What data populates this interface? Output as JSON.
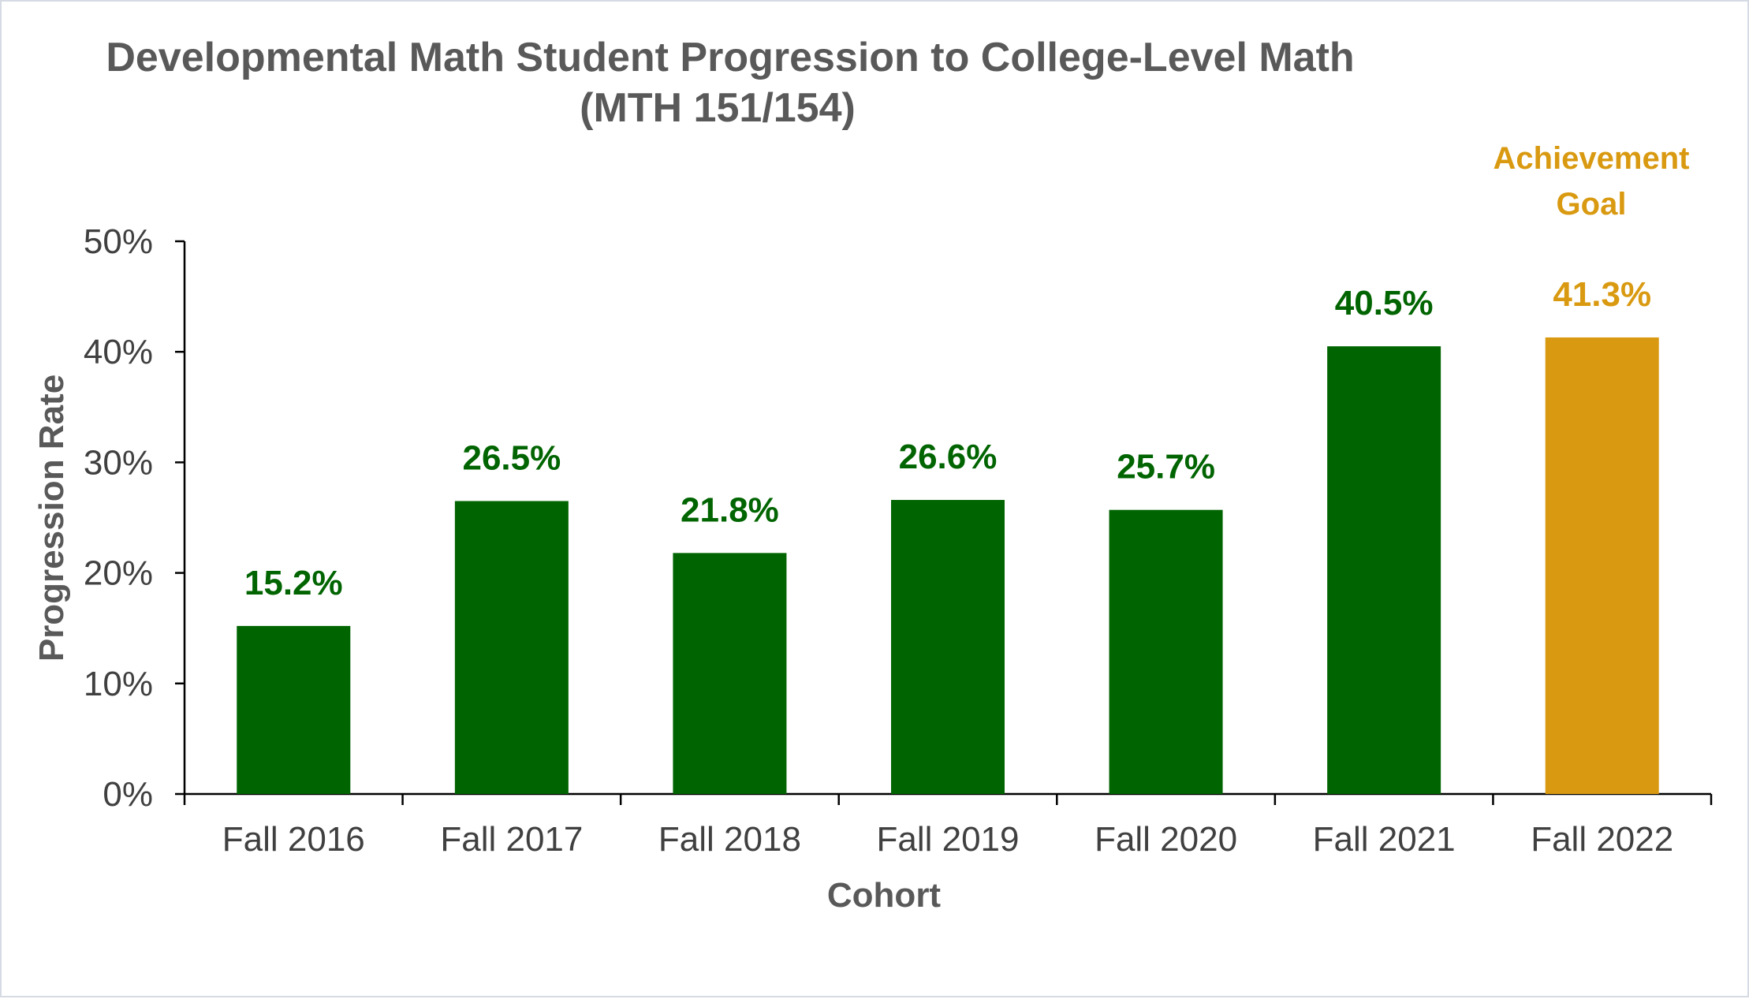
{
  "chart_data": {
    "type": "bar",
    "title_line1": "Developmental Math Student Progression to College-Level Math",
    "title_line2": "(MTH 151/154)",
    "xlabel": "Cohort",
    "ylabel": "Progression Rate",
    "categories": [
      "Fall 2016",
      "Fall 2017",
      "Fall 2018",
      "Fall 2019",
      "Fall 2020",
      "Fall 2021",
      "Fall 2022"
    ],
    "values": [
      15.2,
      26.5,
      21.8,
      26.6,
      25.7,
      40.5,
      41.3
    ],
    "data_labels": [
      "15.2%",
      "26.5%",
      "21.8%",
      "26.6%",
      "25.7%",
      "40.5%",
      "41.3%"
    ],
    "ylim": [
      0,
      50
    ],
    "yticks": [
      0,
      10,
      20,
      30,
      40,
      50
    ],
    "ytick_labels": [
      "0%",
      "10%",
      "20%",
      "30%",
      "40%",
      "50%"
    ],
    "grid": false,
    "legend": "none",
    "annotation_line1": "Achievement",
    "annotation_line2": "Goal",
    "colors": {
      "bar": "#006400",
      "goal": "#D99A11",
      "text": "#595959",
      "axis": "#000000"
    },
    "bar_roles": [
      "actual",
      "actual",
      "actual",
      "actual",
      "actual",
      "actual",
      "goal"
    ]
  }
}
